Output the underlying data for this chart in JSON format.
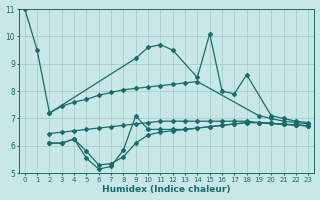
{
  "background_color": "#c8e8e8",
  "grid_color": "#a0c8c8",
  "line_color": "#1a6b6b",
  "x_values": [
    0,
    1,
    2,
    3,
    4,
    5,
    6,
    7,
    8,
    9,
    10,
    11,
    12,
    13,
    14,
    15,
    16,
    17,
    18,
    19,
    20,
    21,
    22,
    23
  ],
  "series1": [
    11.0,
    9.5,
    7.2,
    null,
    null,
    null,
    null,
    null,
    null,
    9.2,
    9.6,
    9.7,
    9.5,
    null,
    8.5,
    10.1,
    8.0,
    7.9,
    8.6,
    null,
    7.1,
    7.0,
    6.9,
    6.85
  ],
  "series2": [
    null,
    null,
    7.2,
    7.45,
    7.6,
    7.7,
    7.85,
    7.95,
    8.05,
    8.1,
    8.15,
    8.2,
    8.25,
    8.3,
    8.35,
    null,
    null,
    null,
    null,
    7.1,
    7.0,
    6.9,
    6.85,
    6.8
  ],
  "series3": [
    null,
    null,
    6.45,
    6.5,
    6.55,
    6.6,
    6.65,
    6.7,
    6.75,
    6.8,
    6.85,
    6.9,
    6.9,
    6.9,
    6.9,
    6.9,
    6.9,
    6.9,
    6.9,
    6.85,
    6.82,
    6.79,
    6.76,
    6.73
  ],
  "series4": [
    null,
    null,
    6.1,
    6.1,
    6.25,
    5.8,
    5.3,
    5.35,
    5.6,
    6.1,
    6.4,
    6.5,
    6.55,
    6.6,
    6.65,
    6.7,
    6.75,
    6.8,
    6.85,
    6.85,
    6.82,
    6.79,
    6.76,
    6.73
  ],
  "series5": [
    null,
    null,
    6.1,
    6.1,
    6.25,
    5.55,
    5.15,
    5.25,
    5.85,
    7.1,
    6.6,
    6.6,
    6.6,
    6.6,
    6.65,
    6.7,
    6.75,
    6.8,
    6.85,
    6.85,
    6.82,
    6.79,
    6.76,
    6.73
  ],
  "xlabel": "Humidex (Indice chaleur)",
  "xlim": [
    -0.5,
    23.5
  ],
  "ylim": [
    5,
    11
  ],
  "yticks": [
    5,
    6,
    7,
    8,
    9,
    10,
    11
  ],
  "xticks": [
    0,
    1,
    2,
    3,
    4,
    5,
    6,
    7,
    8,
    9,
    10,
    11,
    12,
    13,
    14,
    15,
    16,
    17,
    18,
    19,
    20,
    21,
    22,
    23
  ]
}
